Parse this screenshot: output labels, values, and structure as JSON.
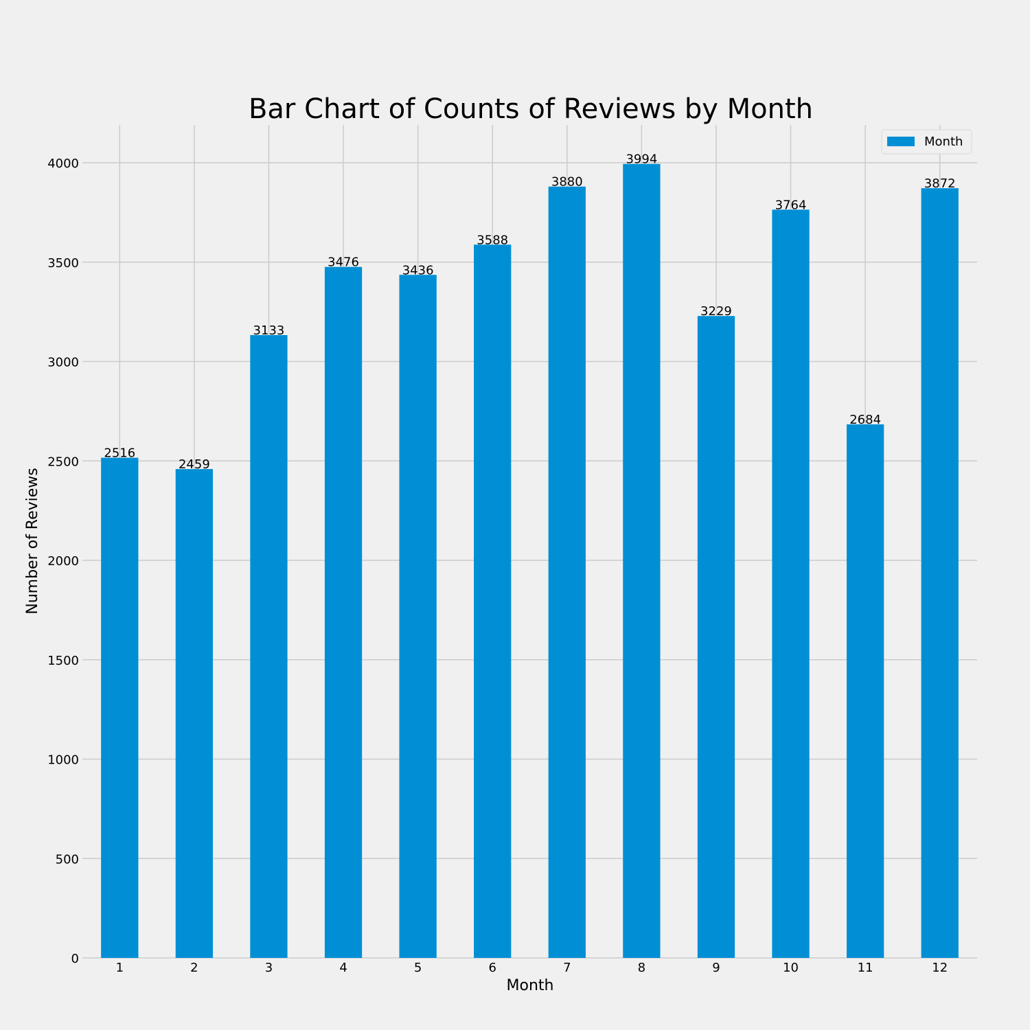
{
  "chart_data": {
    "type": "bar",
    "title": "Bar Chart of Counts of Reviews by Month",
    "xlabel": "Month",
    "ylabel": "Number of Reviews",
    "categories": [
      "1",
      "2",
      "3",
      "4",
      "5",
      "6",
      "7",
      "8",
      "9",
      "10",
      "11",
      "12"
    ],
    "series": [
      {
        "name": "Month",
        "values": [
          2516,
          2459,
          3133,
          3476,
          3436,
          3588,
          3880,
          3994,
          3229,
          3764,
          2684,
          3872
        ],
        "color": "#008fd5"
      }
    ],
    "data_labels": [
      "2516",
      "2459",
      "3133",
      "3476",
      "3436",
      "3588",
      "3880",
      "3994",
      "3229",
      "3764",
      "2684",
      "3872"
    ],
    "yticks": [
      0,
      500,
      1000,
      1500,
      2000,
      2500,
      3000,
      3500,
      4000
    ],
    "ytick_labels": [
      "0",
      "500",
      "1000",
      "1500",
      "2000",
      "2500",
      "3000",
      "3500",
      "4000"
    ],
    "ylim": [
      0,
      4190
    ],
    "grid": true,
    "legend": {
      "position": "top-right",
      "entries": [
        "Month"
      ]
    },
    "colors": {
      "background": "#f0f0f0",
      "grid": "#cbcbcb",
      "bar": "#008fd5"
    }
  }
}
